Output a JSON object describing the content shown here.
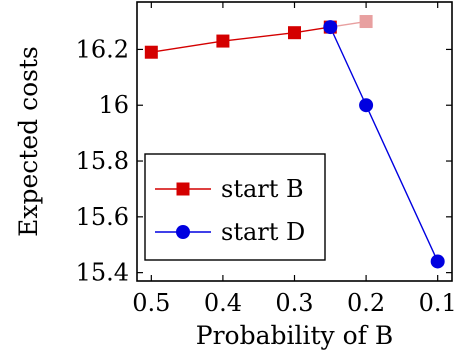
{
  "chart_data": {
    "type": "line",
    "title": "",
    "xlabel": "Probability of B",
    "ylabel": "Expected costs",
    "x_reversed": true,
    "xlim": [
      0.52,
      0.08
    ],
    "ylim": [
      15.37,
      16.37
    ],
    "xticks": [
      0.5,
      0.4,
      0.3,
      0.2,
      0.1
    ],
    "yticks": [
      15.4,
      15.6,
      15.8,
      16,
      16.2
    ],
    "xtick_labels": [
      "0.5",
      "0.4",
      "0.3",
      "0.2",
      "0.1"
    ],
    "ytick_labels": [
      "15.4",
      "15.6",
      "15.8",
      "16",
      "16.2"
    ],
    "grid": false,
    "legend_position": "bottom-left",
    "series": [
      {
        "name": "start B",
        "color": "#d40000",
        "marker": "square",
        "x": [
          0.5,
          0.4,
          0.3,
          0.25
        ],
        "y": [
          16.19,
          16.23,
          16.26,
          16.28
        ]
      },
      {
        "name": "start B (faded)",
        "color": "#e8a0a0",
        "marker": "square",
        "x": [
          0.25,
          0.2
        ],
        "y": [
          16.28,
          16.3
        ]
      },
      {
        "name": "start D",
        "color": "#0000e0",
        "marker": "circle",
        "x": [
          0.25,
          0.2,
          0.1
        ],
        "y": [
          16.28,
          16.0,
          15.44
        ]
      }
    ],
    "legend": [
      {
        "label": "start B",
        "color": "#d40000",
        "marker": "square"
      },
      {
        "label": "start D",
        "color": "#0000e0",
        "marker": "circle"
      }
    ]
  }
}
